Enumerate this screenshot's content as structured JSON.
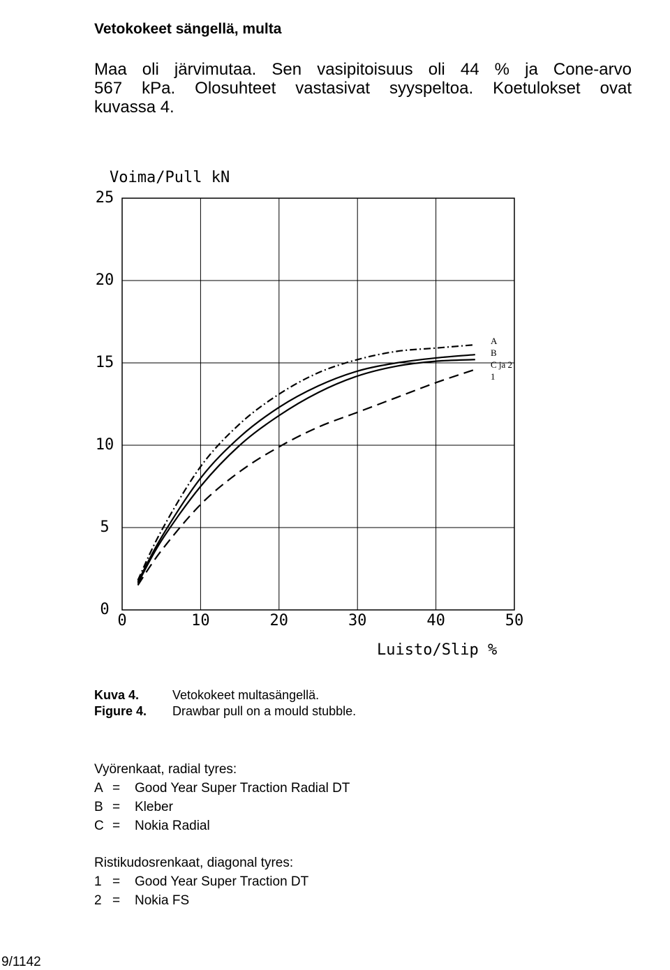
{
  "heading": "Vetokokeet sängellä, multa",
  "paragraph": [
    "Maa oli järvimutaa. Sen vasipitoisuus oli 44 % ja Cone-arvo",
    "567 kPa. Olosuhteet vastasivat syyspeltoa. Koetulokset ovat",
    "kuvassa 4."
  ],
  "chart_data": {
    "type": "line",
    "y_label": "Voima/Pull kN",
    "x_label": "Luisto/Slip %",
    "x": [
      2,
      5,
      10,
      15,
      20,
      25,
      30,
      35,
      40,
      45
    ],
    "series": [
      {
        "name": "A",
        "color": "#000000",
        "style": "dashdot",
        "values": [
          1.8,
          4.8,
          8.7,
          11.3,
          13.1,
          14.4,
          15.2,
          15.7,
          15.9,
          16.1
        ]
      },
      {
        "name": "B",
        "color": "#000000",
        "style": "solid",
        "values": [
          1.7,
          4.4,
          8.0,
          10.5,
          12.3,
          13.6,
          14.5,
          15.0,
          15.3,
          15.5
        ]
      },
      {
        "name": "C ja 2",
        "color": "#000000",
        "style": "solid",
        "values": [
          1.6,
          4.2,
          7.5,
          10.0,
          11.8,
          13.2,
          14.2,
          14.8,
          15.1,
          15.2
        ]
      },
      {
        "name": "1",
        "color": "#000000",
        "style": "dashed",
        "values": [
          1.5,
          3.6,
          6.4,
          8.4,
          9.9,
          11.1,
          12.0,
          12.9,
          13.8,
          14.6
        ]
      }
    ],
    "xlim": [
      0,
      50
    ],
    "xticks": [
      0,
      10,
      20,
      30,
      40,
      50
    ],
    "ylim": [
      0,
      25
    ],
    "yticks": [
      0,
      5,
      10,
      15,
      20,
      25
    ],
    "grid": true
  },
  "caption": [
    {
      "label": "Kuva 4.",
      "text": "Vetokokeet multasängellä."
    },
    {
      "label": "Figure 4.",
      "text": "Drawbar pull on a mould stubble."
    }
  ],
  "lists": [
    {
      "title": "Vyörenkaat, radial tyres:",
      "items": [
        {
          "key": "A",
          "sign": "=",
          "text": "Good Year Super Traction Radial DT"
        },
        {
          "key": "B",
          "sign": "=",
          "text": "Kleber"
        },
        {
          "key": "C",
          "sign": "=",
          "text": "Nokia Radial"
        }
      ]
    },
    {
      "title": "Ristikudosrenkaat, diagonal tyres:",
      "items": [
        {
          "key": "1",
          "sign": "=",
          "text": "Good Year Super Traction DT"
        },
        {
          "key": "2",
          "sign": "=",
          "text": "Nokia FS"
        }
      ]
    }
  ],
  "footer": "9/1142"
}
